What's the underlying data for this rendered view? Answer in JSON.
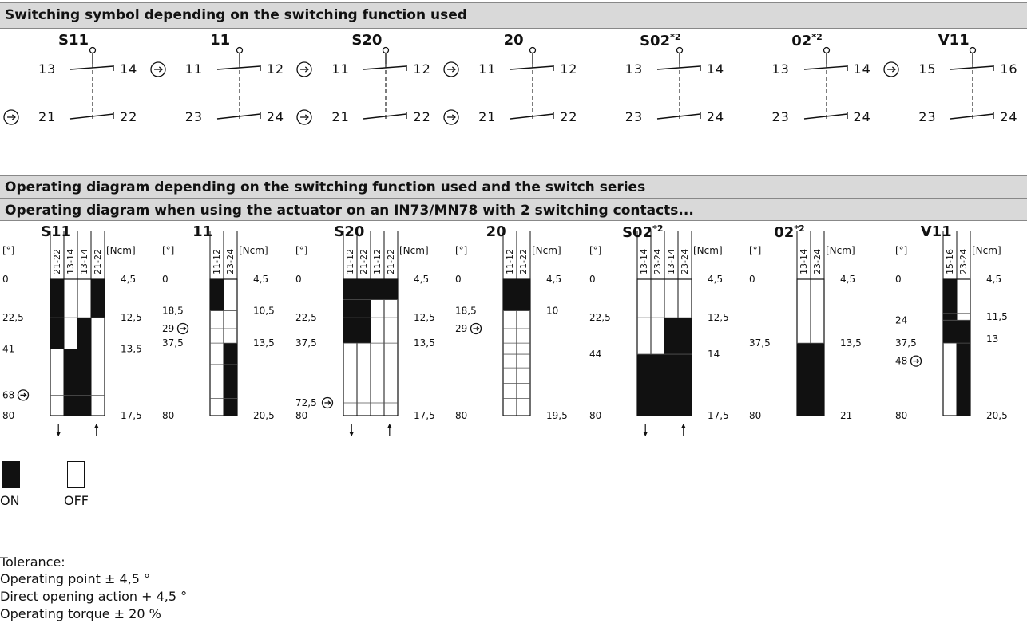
{
  "titles": {
    "symbols": "Switching symbol depending on the switching function used",
    "diagram1": "Operating diagram depending on the switching function used and the switch series",
    "diagram2": "Operating diagram when using the actuator on an IN73/MN78 with 2 switching contacts..."
  },
  "symbols": [
    {
      "name": "S11",
      "sup": "",
      "top": [
        "13",
        "14"
      ],
      "bottom": [
        "21",
        "22"
      ],
      "arrow_bottom": true,
      "arrow_top": false
    },
    {
      "name": "11",
      "sup": "",
      "top": [
        "11",
        "12"
      ],
      "bottom": [
        "23",
        "24"
      ],
      "arrow_bottom": false,
      "arrow_top": true
    },
    {
      "name": "S20",
      "sup": "",
      "top": [
        "11",
        "12"
      ],
      "bottom": [
        "21",
        "22"
      ],
      "arrow_bottom": true,
      "arrow_top": true
    },
    {
      "name": "20",
      "sup": "",
      "top": [
        "11",
        "12"
      ],
      "bottom": [
        "21",
        "22"
      ],
      "arrow_bottom": true,
      "arrow_top": true
    },
    {
      "name": "S02",
      "sup": "*2",
      "top": [
        "13",
        "14"
      ],
      "bottom": [
        "23",
        "24"
      ],
      "arrow_bottom": false,
      "arrow_top": false
    },
    {
      "name": "02",
      "sup": "*2",
      "top": [
        "13",
        "14"
      ],
      "bottom": [
        "23",
        "24"
      ],
      "arrow_bottom": false,
      "arrow_top": false
    },
    {
      "name": "V11",
      "sup": "",
      "top": [
        "15",
        "16"
      ],
      "bottom": [
        "23",
        "24"
      ],
      "arrow_bottom": false,
      "arrow_top": true
    }
  ],
  "diagrams": [
    {
      "name": "S11",
      "sup": "",
      "columns": [
        "21-22",
        "13-14",
        "13-14",
        "21-22"
      ],
      "deg_unit": "[°]",
      "torque_unit": "[Ncm]",
      "deg_range": [
        0,
        80
      ],
      "deg_labels": [
        {
          "v": 0,
          "t": "0"
        },
        {
          "v": 22.5,
          "t": "22,5"
        },
        {
          "v": 41,
          "t": "41"
        },
        {
          "v": 68,
          "t": "68",
          "arrow": true
        },
        {
          "v": 80,
          "t": "80"
        }
      ],
      "torque_labels": [
        {
          "v": 0,
          "t": "4,5"
        },
        {
          "v": 22.5,
          "t": "12,5"
        },
        {
          "v": 41,
          "t": "13,5"
        },
        {
          "v": 80,
          "t": "17,5"
        }
      ],
      "on": [
        [
          [
            0,
            41
          ]
        ],
        [
          [
            41,
            80
          ]
        ],
        [
          [
            22.5,
            80
          ]
        ],
        [
          [
            0,
            22.5
          ]
        ]
      ],
      "gridlines": [
        22.5,
        41,
        68
      ],
      "direction_arrows": [
        "down",
        "up"
      ]
    },
    {
      "name": "11",
      "sup": "",
      "columns": [
        "11-12",
        "23-24"
      ],
      "deg_unit": "[°]",
      "torque_unit": "[Ncm]",
      "deg_range": [
        0,
        80
      ],
      "deg_labels": [
        {
          "v": 0,
          "t": "0"
        },
        {
          "v": 18.5,
          "t": "18,5"
        },
        {
          "v": 29,
          "t": "29",
          "arrow": true
        },
        {
          "v": 37.5,
          "t": "37,5"
        },
        {
          "v": 80,
          "t": "80"
        }
      ],
      "torque_labels": [
        {
          "v": 0,
          "t": "4,5"
        },
        {
          "v": 18.5,
          "t": "10,5"
        },
        {
          "v": 37.5,
          "t": "13,5"
        },
        {
          "v": 80,
          "t": "20,5"
        }
      ],
      "on": [
        [
          [
            0,
            18.5
          ]
        ],
        [
          [
            37.5,
            80
          ]
        ]
      ],
      "gridlines": [
        18.5,
        29,
        37.5,
        50,
        62,
        70
      ],
      "direction_arrows": []
    },
    {
      "name": "S20",
      "sup": "",
      "columns": [
        "11-12",
        "21-22",
        "11-12",
        "21-22"
      ],
      "deg_unit": "[°]",
      "torque_unit": "[Ncm]",
      "deg_range": [
        0,
        80
      ],
      "deg_labels": [
        {
          "v": 0,
          "t": "0"
        },
        {
          "v": 22.5,
          "t": "22,5"
        },
        {
          "v": 37.5,
          "t": "37,5"
        },
        {
          "v": 72.5,
          "t": "72,5",
          "arrow": true
        },
        {
          "v": 80,
          "t": "80"
        }
      ],
      "torque_labels": [
        {
          "v": 0,
          "t": "4,5"
        },
        {
          "v": 22.5,
          "t": "12,5"
        },
        {
          "v": 37.5,
          "t": "13,5"
        },
        {
          "v": 80,
          "t": "17,5"
        }
      ],
      "on": [
        [
          [
            0,
            37.5
          ]
        ],
        [
          [
            0,
            37.5
          ]
        ],
        [
          [
            0,
            12
          ]
        ],
        [
          [
            0,
            12
          ]
        ]
      ],
      "gridlines": [
        12,
        22.5,
        37.5,
        72.5
      ],
      "direction_arrows": [
        "down",
        "up"
      ]
    },
    {
      "name": "20",
      "sup": "",
      "columns": [
        "11-12",
        "21-22"
      ],
      "deg_unit": "[°]",
      "torque_unit": "[Ncm]",
      "deg_range": [
        0,
        80
      ],
      "deg_labels": [
        {
          "v": 0,
          "t": "0"
        },
        {
          "v": 18.5,
          "t": "18,5"
        },
        {
          "v": 29,
          "t": "29",
          "arrow": true
        },
        {
          "v": 80,
          "t": "80"
        }
      ],
      "torque_labels": [
        {
          "v": 0,
          "t": "4,5"
        },
        {
          "v": 18.5,
          "t": "10"
        },
        {
          "v": 80,
          "t": "19,5"
        }
      ],
      "on": [
        [
          [
            0,
            18.5
          ]
        ],
        [
          [
            0,
            18.5
          ]
        ]
      ],
      "gridlines": [
        18.5,
        29,
        37.5,
        44,
        52,
        61,
        70
      ],
      "direction_arrows": []
    },
    {
      "name": "S02",
      "sup": "*2",
      "columns": [
        "13-14",
        "23-24",
        "13-14",
        "23-24"
      ],
      "deg_unit": "[°]",
      "torque_unit": "[Ncm]",
      "deg_range": [
        0,
        80
      ],
      "deg_labels": [
        {
          "v": 0,
          "t": "0"
        },
        {
          "v": 22.5,
          "t": "22,5"
        },
        {
          "v": 44,
          "t": "44"
        },
        {
          "v": 80,
          "t": "80"
        }
      ],
      "torque_labels": [
        {
          "v": 0,
          "t": "4,5"
        },
        {
          "v": 22.5,
          "t": "12,5"
        },
        {
          "v": 44,
          "t": "14"
        },
        {
          "v": 80,
          "t": "17,5"
        }
      ],
      "on": [
        [
          [
            44,
            80
          ]
        ],
        [
          [
            44,
            80
          ]
        ],
        [
          [
            22.5,
            80
          ]
        ],
        [
          [
            22.5,
            80
          ]
        ]
      ],
      "gridlines": [
        22.5,
        44
      ],
      "direction_arrows": [
        "down",
        "up"
      ]
    },
    {
      "name": "02",
      "sup": "*2",
      "columns": [
        "13-14",
        "23-24"
      ],
      "deg_unit": "[°]",
      "torque_unit": "[Ncm]",
      "deg_range": [
        0,
        80
      ],
      "deg_labels": [
        {
          "v": 0,
          "t": "0"
        },
        {
          "v": 37.5,
          "t": "37,5"
        },
        {
          "v": 80,
          "t": "80"
        }
      ],
      "torque_labels": [
        {
          "v": 0,
          "t": "4,5"
        },
        {
          "v": 37.5,
          "t": "13,5"
        },
        {
          "v": 80,
          "t": "21"
        }
      ],
      "on": [
        [
          [
            37.5,
            80
          ]
        ],
        [
          [
            37.5,
            80
          ]
        ]
      ],
      "gridlines": [
        37.5
      ],
      "direction_arrows": []
    },
    {
      "name": "V11",
      "sup": "",
      "columns": [
        "15-16",
        "23-24"
      ],
      "deg_unit": "[°]",
      "torque_unit": "[Ncm]",
      "deg_range": [
        0,
        80
      ],
      "deg_labels": [
        {
          "v": 0,
          "t": "0"
        },
        {
          "v": 24,
          "t": "24"
        },
        {
          "v": 37.5,
          "t": "37,5"
        },
        {
          "v": 48,
          "t": "48",
          "arrow": true
        },
        {
          "v": 80,
          "t": "80"
        }
      ],
      "torque_labels": [
        {
          "v": 0,
          "t": "4,5"
        },
        {
          "v": 22,
          "t": "11,5"
        },
        {
          "v": 35,
          "t": "13"
        },
        {
          "v": 80,
          "t": "20,5"
        }
      ],
      "on": [
        [
          [
            0,
            37.5
          ]
        ],
        [
          [
            24,
            80
          ]
        ]
      ],
      "gridlines": [
        20,
        24,
        37.5,
        48
      ],
      "direction_arrows": []
    }
  ],
  "legend": {
    "on_label": "ON",
    "off_label": "OFF"
  },
  "tolerance": {
    "heading": "Tolerance:",
    "lines": [
      "Operating point ± 4,5 °",
      "Direct opening action + 4,5 °",
      "Operating torque ± 20 %"
    ]
  },
  "colors": {
    "header_bg": "#d9d9d9",
    "on_fill": "#111111"
  }
}
